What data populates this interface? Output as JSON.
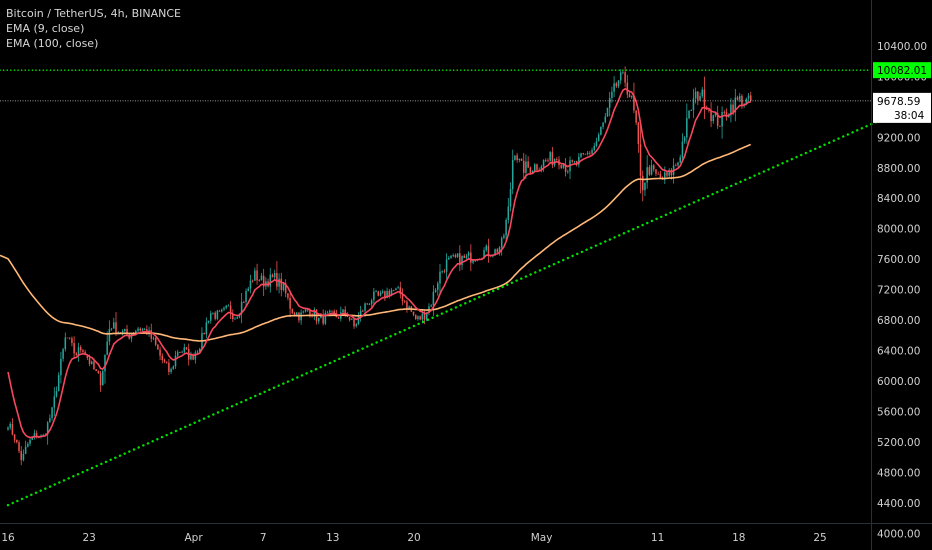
{
  "legend": {
    "symbol": "Bitcoin / TetherUS, 4h, BINANCE",
    "ema9": "EMA (9, close)",
    "ema100": "EMA (100, close)"
  },
  "colors": {
    "background": "#000000",
    "candle_up": "#26a69a",
    "candle_down": "#ef5350",
    "ema9": "#f6475d",
    "ema100": "#ffb877",
    "trendline": "#00e000",
    "resistance": "#00e000",
    "price_line": "#cccccc",
    "resistance_tag": "#00ff00",
    "price_tag": "#ffffff"
  },
  "price_tags": {
    "resistance_label": "10082.01",
    "last_price_label": "9678.59",
    "countdown_label": "38:04"
  },
  "chart_data": {
    "type": "candlestick",
    "ylim": [
      3950,
      10700
    ],
    "y_ticks": [
      4000,
      4400,
      4800,
      5200,
      5600,
      6000,
      6400,
      6800,
      7200,
      7600,
      8000,
      8400,
      8800,
      9200,
      9600,
      10000,
      10400
    ],
    "y_tick_labels": [
      "4000.00",
      "4400.00",
      "4800.00",
      "5200.00",
      "5600.00",
      "6000.00",
      "6400.00",
      "6800.00",
      "7200.00",
      "7600.00",
      "8000.00",
      "8400.00",
      "8800.00",
      "9200.00",
      "9600.00",
      "10000.00",
      "10400.00"
    ],
    "x_day_range": [
      16,
      77
    ],
    "x_ticks": [
      {
        "day": 16,
        "label": "16"
      },
      {
        "day": 23,
        "label": "23"
      },
      {
        "day": 32,
        "label": "Apr"
      },
      {
        "day": 38,
        "label": "7"
      },
      {
        "day": 44,
        "label": "13"
      },
      {
        "day": 51,
        "label": "20"
      },
      {
        "day": 62,
        "label": "May"
      },
      {
        "day": 72,
        "label": "11"
      },
      {
        "day": 79,
        "label": "18"
      },
      {
        "day": 86,
        "label": "25"
      }
    ],
    "resistance_level": 10082.01,
    "last_price": 9678.59,
    "trendline": {
      "start": {
        "day": 16,
        "price": 4370
      },
      "end": {
        "day": 93.5,
        "price": 9580
      }
    },
    "price_path": [
      [
        16.0,
        5450
      ],
      [
        16.6,
        5250
      ],
      [
        17.2,
        4950
      ],
      [
        17.6,
        5150
      ],
      [
        18.4,
        5300
      ],
      [
        19.0,
        5250
      ],
      [
        19.8,
        5600
      ],
      [
        20.4,
        6100
      ],
      [
        21.0,
        6600
      ],
      [
        21.8,
        6350
      ],
      [
        22.4,
        6450
      ],
      [
        23.2,
        6200
      ],
      [
        24.0,
        6000
      ],
      [
        24.8,
        6750
      ],
      [
        25.6,
        6650
      ],
      [
        26.4,
        6600
      ],
      [
        27.2,
        6700
      ],
      [
        28.0,
        6650
      ],
      [
        28.6,
        6500
      ],
      [
        29.2,
        6300
      ],
      [
        30.0,
        6100
      ],
      [
        30.6,
        6400
      ],
      [
        31.2,
        6400
      ],
      [
        31.8,
        6300
      ],
      [
        32.6,
        6500
      ],
      [
        33.4,
        6900
      ],
      [
        34.2,
        6850
      ],
      [
        35.0,
        6950
      ],
      [
        35.6,
        6850
      ],
      [
        36.4,
        7100
      ],
      [
        37.2,
        7400
      ],
      [
        38.0,
        7300
      ],
      [
        39.0,
        7350
      ],
      [
        39.8,
        7200
      ],
      [
        40.4,
        6950
      ],
      [
        41.2,
        6850
      ],
      [
        42.0,
        6950
      ],
      [
        42.8,
        6800
      ],
      [
        43.6,
        6850
      ],
      [
        44.4,
        6850
      ],
      [
        45.2,
        6900
      ],
      [
        45.8,
        6700
      ],
      [
        46.6,
        6950
      ],
      [
        47.4,
        7100
      ],
      [
        48.2,
        7100
      ],
      [
        49.0,
        7200
      ],
      [
        49.8,
        7150
      ],
      [
        50.6,
        6950
      ],
      [
        51.2,
        6800
      ],
      [
        51.8,
        6850
      ],
      [
        52.4,
        7000
      ],
      [
        53.2,
        7400
      ],
      [
        53.8,
        7550
      ],
      [
        54.6,
        7600
      ],
      [
        55.4,
        7600
      ],
      [
        56.2,
        7650
      ],
      [
        57.0,
        7700
      ],
      [
        58.0,
        7700
      ],
      [
        58.6,
        7800
      ],
      [
        59.2,
        8300
      ],
      [
        59.6,
        9100
      ],
      [
        60.2,
        8800
      ],
      [
        61.0,
        8800
      ],
      [
        61.8,
        8850
      ],
      [
        62.6,
        8900
      ],
      [
        63.4,
        8950
      ],
      [
        64.2,
        8800
      ],
      [
        65.0,
        8850
      ],
      [
        65.8,
        8950
      ],
      [
        66.6,
        9100
      ],
      [
        67.4,
        9400
      ],
      [
        68.0,
        9700
      ],
      [
        68.6,
        9950
      ],
      [
        69.2,
        9950
      ],
      [
        69.8,
        9650
      ],
      [
        70.2,
        9300
      ],
      [
        70.6,
        8500
      ],
      [
        71.2,
        8800
      ],
      [
        71.8,
        8700
      ],
      [
        72.4,
        8650
      ],
      [
        73.0,
        8700
      ],
      [
        73.8,
        8900
      ],
      [
        74.4,
        9300
      ],
      [
        75.0,
        9650
      ],
      [
        75.6,
        9800
      ],
      [
        76.2,
        9650
      ],
      [
        76.8,
        9450
      ],
      [
        77.4,
        9400
      ],
      [
        78.0,
        9550
      ],
      [
        78.6,
        9650
      ],
      [
        79.2,
        9700
      ],
      [
        79.8,
        9650
      ],
      [
        80.2,
        9680
      ]
    ],
    "ema9_start": 6300,
    "ema100_start": 7650
  }
}
